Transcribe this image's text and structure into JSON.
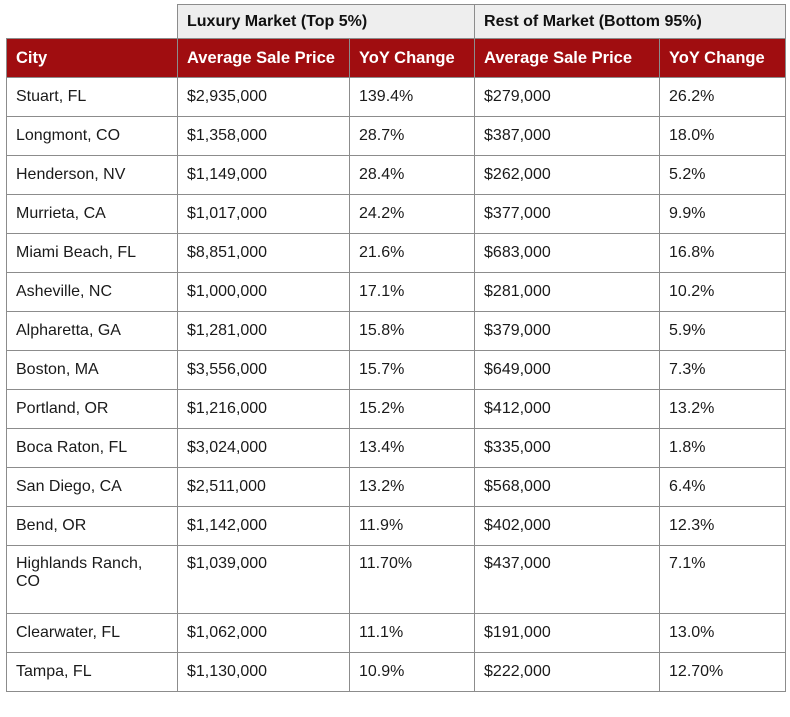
{
  "chart_data": {
    "type": "table",
    "group_headers": [
      {
        "label": "",
        "span": 1
      },
      {
        "label": "Luxury Market (Top 5%)",
        "span": 2
      },
      {
        "label": "Rest of Market (Bottom 95%)",
        "span": 2
      }
    ],
    "columns": [
      "City",
      "Average Sale Price",
      "YoY Change",
      "Average Sale Price",
      "YoY Change"
    ],
    "rows": [
      [
        "Stuart, FL",
        "$2,935,000",
        "139.4%",
        "$279,000",
        "26.2%"
      ],
      [
        "Longmont, CO",
        "$1,358,000",
        "28.7%",
        "$387,000",
        "18.0%"
      ],
      [
        "Henderson, NV",
        "$1,149,000",
        "28.4%",
        "$262,000",
        "5.2%"
      ],
      [
        "Murrieta, CA",
        "$1,017,000",
        "24.2%",
        "$377,000",
        "9.9%"
      ],
      [
        "Miami Beach, FL",
        "$8,851,000",
        "21.6%",
        "$683,000",
        "16.8%"
      ],
      [
        "Asheville, NC",
        "$1,000,000",
        "17.1%",
        "$281,000",
        "10.2%"
      ],
      [
        "Alpharetta, GA",
        "$1,281,000",
        "15.8%",
        "$379,000",
        "5.9%"
      ],
      [
        "Boston, MA",
        "$3,556,000",
        "15.7%",
        "$649,000",
        "7.3%"
      ],
      [
        "Portland, OR",
        "$1,216,000",
        "15.2%",
        "$412,000",
        "13.2%"
      ],
      [
        "Boca Raton, FL",
        "$3,024,000",
        "13.4%",
        "$335,000",
        "1.8%"
      ],
      [
        "San Diego, CA",
        "$2,511,000",
        "13.2%",
        "$568,000",
        "6.4%"
      ],
      [
        "Bend, OR",
        "$1,142,000",
        "11.9%",
        "$402,000",
        "12.3%"
      ],
      [
        "Highlands Ranch, CO",
        "$1,039,000",
        "11.70%",
        "$437,000",
        "7.1%"
      ],
      [
        "Clearwater, FL",
        "$1,062,000",
        "11.1%",
        "$191,000",
        "13.0%"
      ],
      [
        "Tampa, FL",
        "$1,130,000",
        "10.9%",
        "$222,000",
        "12.70%"
      ]
    ],
    "colors": {
      "header_background": "#a00d10",
      "header_text": "#ffffff",
      "group_header_background": "#eeeeee",
      "border": "#8c8c8c"
    }
  }
}
